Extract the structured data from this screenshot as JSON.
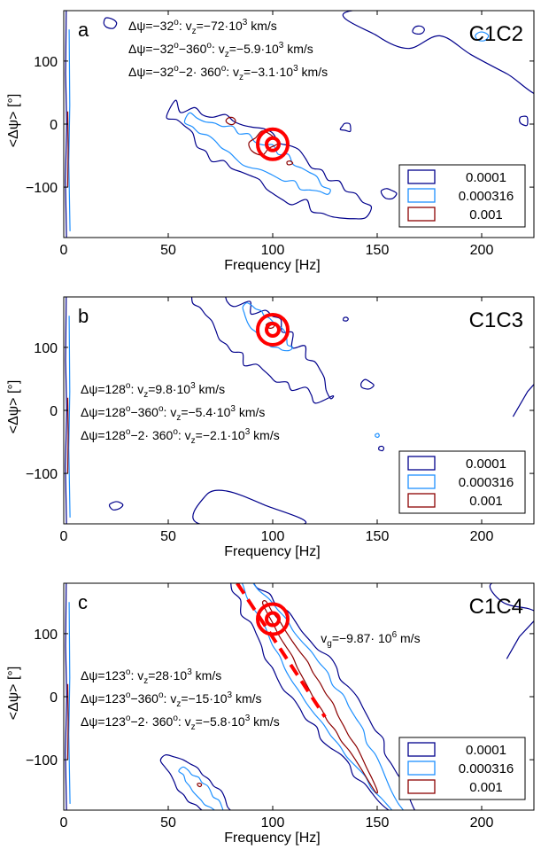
{
  "chart_data": [
    {
      "type": "contour",
      "panel_letter": "a",
      "pair_label": "C1C2",
      "xlabel": "Frequency [Hz]",
      "ylabel": "<Δψ> [°]",
      "xlim": [
        0,
        225
      ],
      "ylim": [
        -180,
        180
      ],
      "x_ticks": [
        0,
        50,
        100,
        150,
        200
      ],
      "y_ticks": [
        100,
        0,
        -100
      ],
      "x_tick_labels": [
        "0",
        "50",
        "100",
        "150",
        "200"
      ],
      "y_tick_labels": [
        "100",
        "0",
        "−100"
      ],
      "legend": {
        "position": "bottom-right",
        "entries": [
          {
            "label": "0.0001",
            "color": "#00008b"
          },
          {
            "label": "0.000316",
            "color": "#1e90ff"
          },
          {
            "label": "0.001",
            "color": "#8b0000"
          }
        ]
      },
      "annotation_lines": [
        {
          "dpsi": "Δψ=−32",
          "sup1": "o",
          "mid": ": v",
          "sub": "z",
          "val": "=−72·10",
          "sup2": "3",
          "unit": " km/s"
        },
        {
          "dpsi": "Δψ=−32",
          "sup1": "o",
          "mid": "−360",
          "sup1b": "o",
          "mid2": ": v",
          "sub": "z",
          "val": "=−5.9·10",
          "sup2": "3",
          "unit": " km/s"
        },
        {
          "dpsi": "Δψ=−32",
          "sup1": "o",
          "mid": "−2· 360",
          "sup1b": "o",
          "mid2": ": v",
          "sub": "z",
          "val": "=−3.1·10",
          "sup2": "3",
          "unit": " km/s"
        }
      ],
      "target": {
        "frequency_hz": 100,
        "dpsi_deg": -32
      },
      "ridge_center": {
        "start": [
          65,
          0
        ],
        "end": [
          115,
          -85
        ]
      },
      "group_velocity_label": null
    },
    {
      "type": "contour",
      "panel_letter": "b",
      "pair_label": "C1C3",
      "xlabel": "Frequency [Hz]",
      "ylabel": "<Δψ> [°]",
      "xlim": [
        0,
        225
      ],
      "ylim": [
        -180,
        180
      ],
      "x_ticks": [
        0,
        50,
        100,
        150,
        200
      ],
      "y_ticks": [
        100,
        0,
        -100
      ],
      "x_tick_labels": [
        "0",
        "50",
        "100",
        "150",
        "200"
      ],
      "y_tick_labels": [
        "100",
        "0",
        "−100"
      ],
      "legend": {
        "position": "bottom-right",
        "entries": [
          {
            "label": "0.0001",
            "color": "#00008b"
          },
          {
            "label": "0.000316",
            "color": "#1e90ff"
          },
          {
            "label": "0.001",
            "color": "#8b0000"
          }
        ]
      },
      "annotation_lines": [
        {
          "dpsi": "Δψ=128",
          "sup1": "o",
          "mid": ": v",
          "sub": "z",
          "val": "=9.8·10",
          "sup2": "3",
          "unit": " km/s"
        },
        {
          "dpsi": "Δψ=128",
          "sup1": "o",
          "mid": "−360",
          "sup1b": "o",
          "mid2": ": v",
          "sub": "z",
          "val": "=−5.4·10",
          "sup2": "3",
          "unit": " km/s"
        },
        {
          "dpsi": "Δψ=128",
          "sup1": "o",
          "mid": "−2· 360",
          "sup1b": "o",
          "mid2": ": v",
          "sub": "z",
          "val": "=−2.1·10",
          "sup2": "3",
          "unit": " km/s"
        }
      ],
      "target": {
        "frequency_hz": 100,
        "dpsi_deg": 128
      },
      "group_velocity_label": null
    },
    {
      "type": "contour",
      "panel_letter": "c",
      "pair_label": "C1C4",
      "xlabel": "Frequency [Hz]",
      "ylabel": "<Δψ> [°]",
      "xlim": [
        0,
        225
      ],
      "ylim": [
        -180,
        180
      ],
      "x_ticks": [
        0,
        50,
        100,
        150,
        200
      ],
      "y_ticks": [
        100,
        0,
        -100
      ],
      "x_tick_labels": [
        "0",
        "50",
        "100",
        "150",
        "200"
      ],
      "y_tick_labels": [
        "100",
        "0",
        "−100"
      ],
      "legend": {
        "position": "bottom-right",
        "entries": [
          {
            "label": "0.0001",
            "color": "#00008b"
          },
          {
            "label": "0.000316",
            "color": "#1e90ff"
          },
          {
            "label": "0.001",
            "color": "#8b0000"
          }
        ]
      },
      "annotation_lines": [
        {
          "dpsi": "Δψ=123",
          "sup1": "o",
          "mid": ": v",
          "sub": "z",
          "val": "=28·10",
          "sup2": "3",
          "unit": " km/s"
        },
        {
          "dpsi": "Δψ=123",
          "sup1": "o",
          "mid": "−360",
          "sup1b": "o",
          "mid2": ": v",
          "sub": "z",
          "val": "=−15·10",
          "sup2": "3",
          "unit": " km/s"
        },
        {
          "dpsi": "Δψ=123",
          "sup1": "o",
          "mid": "−2· 360",
          "sup1b": "o",
          "mid2": ": v",
          "sub": "z",
          "val": "=−5.8·10",
          "sup2": "3",
          "unit": " km/s"
        }
      ],
      "target": {
        "frequency_hz": 100,
        "dpsi_deg": 123
      },
      "fit_line": {
        "start": [
          83,
          180
        ],
        "end": [
          125,
          -32
        ],
        "color": "#ff0000",
        "style": "dashed"
      },
      "group_velocity_label": {
        "v": "v",
        "sub": "g",
        "text": "=−9.87· 10",
        "sup": "6",
        "unit": " m/s"
      }
    }
  ]
}
